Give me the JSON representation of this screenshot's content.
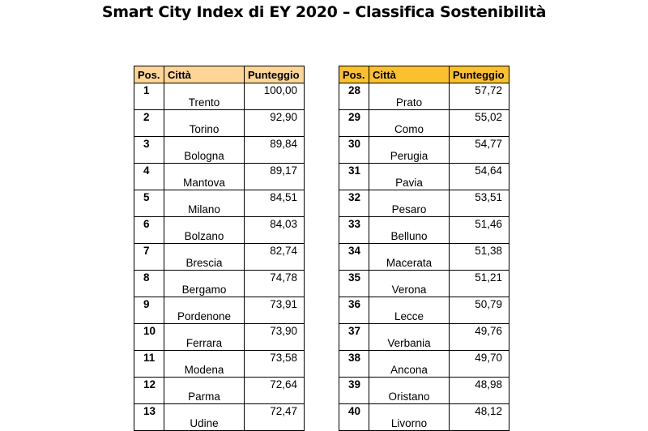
{
  "title": "Smart City Index di EY 2020 – Classifica Sostenibilità",
  "headers": {
    "pos": "Pos.",
    "city": "Città",
    "score": "Punteggio"
  },
  "colors": {
    "left_header": "#fcd597",
    "right_header": "#fbc02d"
  },
  "left_rows": [
    {
      "pos": "1",
      "city": "Trento",
      "score": "100,00"
    },
    {
      "pos": "2",
      "city": "Torino",
      "score": "92,90"
    },
    {
      "pos": "3",
      "city": "Bologna",
      "score": "89,84"
    },
    {
      "pos": "4",
      "city": "Mantova",
      "score": "89,17"
    },
    {
      "pos": "5",
      "city": "Milano",
      "score": "84,51"
    },
    {
      "pos": "6",
      "city": "Bolzano",
      "score": "84,03"
    },
    {
      "pos": "7",
      "city": "Brescia",
      "score": "82,74"
    },
    {
      "pos": "8",
      "city": "Bergamo",
      "score": "74,78"
    },
    {
      "pos": "9",
      "city": "Pordenone",
      "score": "73,91"
    },
    {
      "pos": "10",
      "city": "Ferrara",
      "score": "73,90"
    },
    {
      "pos": "11",
      "city": "Modena",
      "score": "73,58"
    },
    {
      "pos": "12",
      "city": "Parma",
      "score": "72,64"
    },
    {
      "pos": "13",
      "city": "Udine",
      "score": "72,47"
    }
  ],
  "right_rows": [
    {
      "pos": "28",
      "city": "Prato",
      "score": "57,72"
    },
    {
      "pos": "29",
      "city": "Como",
      "score": "55,02"
    },
    {
      "pos": "30",
      "city": "Perugia",
      "score": "54,77"
    },
    {
      "pos": "31",
      "city": "Pavia",
      "score": "54,64"
    },
    {
      "pos": "32",
      "city": "Pesaro",
      "score": "53,51"
    },
    {
      "pos": "33",
      "city": "Belluno",
      "score": "51,46"
    },
    {
      "pos": "34",
      "city": "Macerata",
      "score": "51,38"
    },
    {
      "pos": "35",
      "city": "Verona",
      "score": "51,21"
    },
    {
      "pos": "36",
      "city": "Lecce",
      "score": "50,79"
    },
    {
      "pos": "37",
      "city": "Verbania",
      "score": "49,76"
    },
    {
      "pos": "38",
      "city": "Ancona",
      "score": "49,70"
    },
    {
      "pos": "39",
      "city": "Oristano",
      "score": "48,98"
    },
    {
      "pos": "40",
      "city": "Livorno",
      "score": "48,12"
    }
  ]
}
